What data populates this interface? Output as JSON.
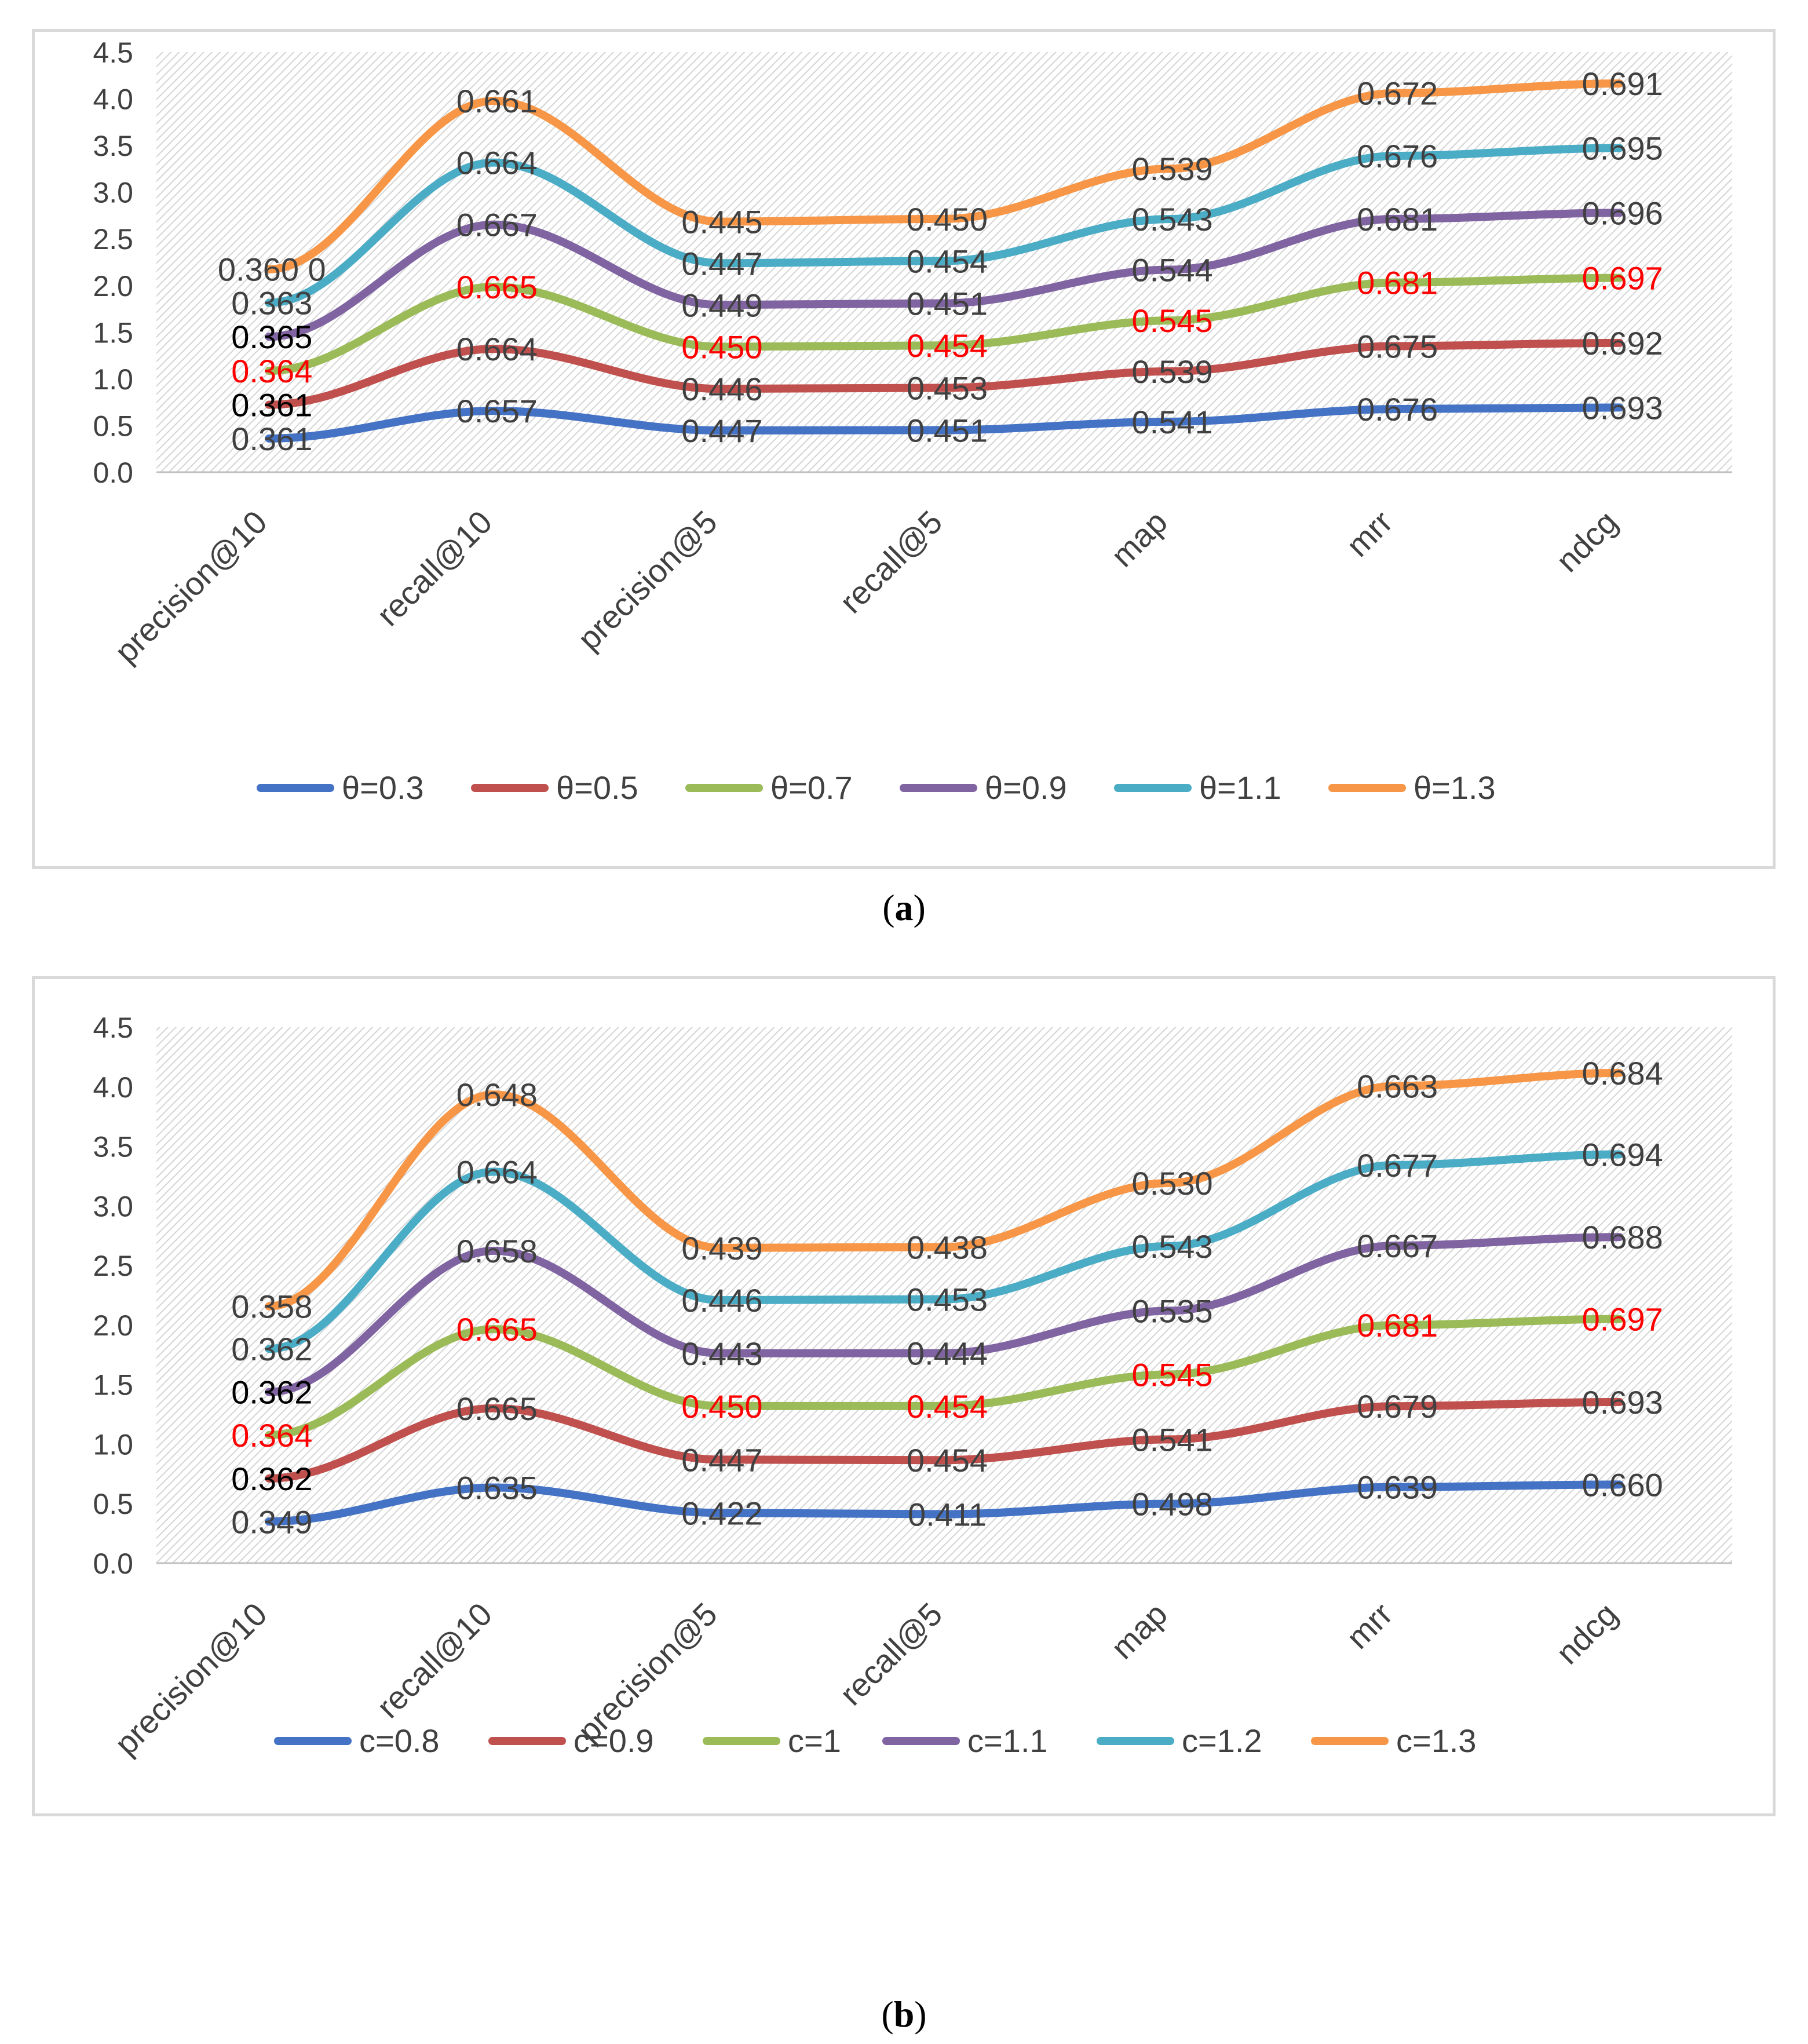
{
  "captions": [
    "a",
    "b"
  ],
  "chart_data": [
    {
      "type": "line",
      "stacked": true,
      "categories": [
        "precision@10",
        "recall@10",
        "precision@5",
        "recall@5",
        "map",
        "mrr",
        "ndcg"
      ],
      "ylim": [
        0,
        4.5
      ],
      "yticks": [
        "0.0",
        "0.5",
        "1.0",
        "1.5",
        "2.0",
        "2.5",
        "3.0",
        "3.5",
        "4.0",
        "4.5"
      ],
      "legend_position": "bottom",
      "series": [
        {
          "name": "θ=0.3",
          "color": "#4472c4",
          "values": [
            0.361,
            0.657,
            0.447,
            0.451,
            0.541,
            0.676,
            0.693
          ],
          "labels": [
            "0.361",
            "0.657",
            "0.447",
            "0.451",
            "0.541",
            "0.676",
            "0.693"
          ],
          "label_colors": [
            "#404040",
            "#404040",
            "#404040",
            "#404040",
            "#404040",
            "#404040",
            "#404040"
          ]
        },
        {
          "name": "θ=0.5",
          "color": "#c0504d",
          "values": [
            0.361,
            0.664,
            0.446,
            0.453,
            0.539,
            0.675,
            0.692
          ],
          "labels": [
            "0.361",
            "0.664",
            "0.446",
            "0.453",
            "0.539",
            "0.675",
            "0.692"
          ],
          "label_colors": [
            "#000000",
            "#404040",
            "#404040",
            "#404040",
            "#404040",
            "#404040",
            "#404040"
          ]
        },
        {
          "name": "θ=0.7",
          "color": "#9bbb59",
          "values": [
            0.364,
            0.665,
            0.45,
            0.454,
            0.545,
            0.681,
            0.697
          ],
          "labels": [
            "0.364",
            "0.665",
            "0.450",
            "0.454",
            "0.545",
            "0.681",
            "0.697"
          ],
          "label_colors": [
            "#ff0000",
            "#ff0000",
            "#ff0000",
            "#ff0000",
            "#ff0000",
            "#ff0000",
            "#ff0000"
          ]
        },
        {
          "name": "θ=0.9",
          "color": "#8064a2",
          "values": [
            0.365,
            0.667,
            0.449,
            0.451,
            0.544,
            0.681,
            0.696
          ],
          "labels": [
            "0.365",
            "0.667",
            "0.449",
            "0.451",
            "0.544",
            "0.681",
            "0.696"
          ],
          "label_colors": [
            "#000000",
            "#404040",
            "#404040",
            "#404040",
            "#404040",
            "#404040",
            "#404040"
          ]
        },
        {
          "name": "θ=1.1",
          "color": "#4bacc6",
          "values": [
            0.363,
            0.664,
            0.447,
            0.454,
            0.543,
            0.676,
            0.695
          ],
          "labels": [
            "0.363",
            "0.664",
            "0.447",
            "0.454",
            "0.543",
            "0.676",
            "0.695"
          ],
          "label_colors": [
            "#404040",
            "#404040",
            "#404040",
            "#404040",
            "#404040",
            "#404040",
            "#404040"
          ]
        },
        {
          "name": "θ=1.3",
          "color": "#f79646",
          "values": [
            0.36,
            0.661,
            0.445,
            0.45,
            0.539,
            0.672,
            0.691
          ],
          "labels": [
            "0.360 0",
            "0.661",
            "0.445",
            "0.450",
            "0.539",
            "0.672",
            "0.691"
          ],
          "label_colors": [
            "#404040",
            "#404040",
            "#404040",
            "#404040",
            "#404040",
            "#404040",
            "#404040"
          ]
        }
      ]
    },
    {
      "type": "line",
      "stacked": true,
      "categories": [
        "precision@10",
        "recall@10",
        "precision@5",
        "recall@5",
        "map",
        "mrr",
        "ndcg"
      ],
      "ylim": [
        0,
        4.5
      ],
      "yticks": [
        "0.0",
        "0.5",
        "1.0",
        "1.5",
        "2.0",
        "2.5",
        "3.0",
        "3.5",
        "4.0",
        "4.5"
      ],
      "legend_position": "bottom",
      "series": [
        {
          "name": "c=0.8",
          "color": "#4472c4",
          "values": [
            0.349,
            0.635,
            0.422,
            0.411,
            0.498,
            0.639,
            0.66
          ],
          "labels": [
            "0.349",
            "0.635",
            "0.422",
            "0.411",
            "0.498",
            "0.639",
            "0.660"
          ],
          "label_colors": [
            "#404040",
            "#404040",
            "#404040",
            "#404040",
            "#404040",
            "#404040",
            "#404040"
          ]
        },
        {
          "name": "c=0.9",
          "color": "#c0504d",
          "values": [
            0.362,
            0.665,
            0.447,
            0.454,
            0.541,
            0.679,
            0.693
          ],
          "labels": [
            "0.362",
            "0.665",
            "0.447",
            "0.454",
            "0.541",
            "0.679",
            "0.693"
          ],
          "label_colors": [
            "#000000",
            "#404040",
            "#404040",
            "#404040",
            "#404040",
            "#404040",
            "#404040"
          ]
        },
        {
          "name": "c=1",
          "color": "#9bbb59",
          "values": [
            0.364,
            0.665,
            0.45,
            0.454,
            0.545,
            0.681,
            0.697
          ],
          "labels": [
            "0.364",
            "0.665",
            "0.450",
            "0.454",
            "0.545",
            "0.681",
            "0.697"
          ],
          "label_colors": [
            "#ff0000",
            "#ff0000",
            "#ff0000",
            "#ff0000",
            "#ff0000",
            "#ff0000",
            "#ff0000"
          ]
        },
        {
          "name": "c=1.1",
          "color": "#8064a2",
          "values": [
            0.362,
            0.658,
            0.443,
            0.444,
            0.535,
            0.667,
            0.688
          ],
          "labels": [
            "0.362",
            "0.658",
            "0.443",
            "0.444",
            "0.535",
            "0.667",
            "0.688"
          ],
          "label_colors": [
            "#000000",
            "#404040",
            "#404040",
            "#404040",
            "#404040",
            "#404040",
            "#404040"
          ]
        },
        {
          "name": "c=1.2",
          "color": "#4bacc6",
          "values": [
            0.362,
            0.664,
            0.446,
            0.453,
            0.543,
            0.677,
            0.694
          ],
          "labels": [
            "0.362",
            "0.664",
            "0.446",
            "0.453",
            "0.543",
            "0.677",
            "0.694"
          ],
          "label_colors": [
            "#404040",
            "#404040",
            "#404040",
            "#404040",
            "#404040",
            "#404040",
            "#404040"
          ]
        },
        {
          "name": "c=1.3",
          "color": "#f79646",
          "values": [
            0.358,
            0.648,
            0.439,
            0.438,
            0.53,
            0.663,
            0.684
          ],
          "labels": [
            "0.358",
            "0.648",
            "0.439",
            "0.438",
            "0.530",
            "0.663",
            "0.684"
          ],
          "label_colors": [
            "#404040",
            "#404040",
            "#404040",
            "#404040",
            "#404040",
            "#404040",
            "#404040"
          ]
        }
      ]
    }
  ]
}
